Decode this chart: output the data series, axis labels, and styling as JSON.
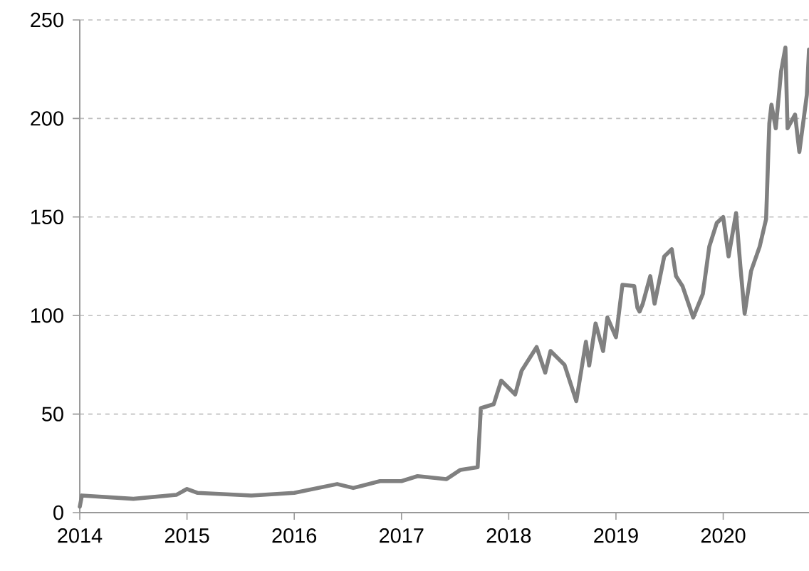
{
  "chart_data": {
    "type": "line",
    "x": [
      2014.0,
      2014.02,
      2014.5,
      2014.9,
      2015.0,
      2015.1,
      2015.6,
      2016.0,
      2016.4,
      2016.55,
      2016.8,
      2017.0,
      2017.15,
      2017.42,
      2017.55,
      2017.71,
      2017.74,
      2017.86,
      2017.93,
      2018.06,
      2018.12,
      2018.26,
      2018.34,
      2018.39,
      2018.52,
      2018.63,
      2018.72,
      2018.75,
      2018.81,
      2018.88,
      2018.92,
      2019.0,
      2019.06,
      2019.17,
      2019.2,
      2019.22,
      2019.25,
      2019.32,
      2019.36,
      2019.45,
      2019.52,
      2019.56,
      2019.62,
      2019.72,
      2019.81,
      2019.87,
      2019.94,
      2020.0,
      2020.05,
      2020.12,
      2020.16,
      2020.2,
      2020.26,
      2020.34,
      2020.4,
      2020.43,
      2020.45,
      2020.49,
      2020.54,
      2020.58,
      2020.6,
      2020.67,
      2020.71,
      2020.78,
      2020.8
    ],
    "series": [
      {
        "color": "#808080",
        "values": [
          3,
          8.7,
          7,
          9,
          12,
          10,
          8.7,
          10,
          14.5,
          12.5,
          16,
          16,
          18.5,
          17,
          21.7,
          23,
          53,
          55,
          67,
          60,
          72,
          84,
          71,
          82,
          75,
          56.6,
          86.7,
          74.6,
          96,
          82,
          99,
          89,
          115.6,
          115,
          104,
          102,
          106,
          120,
          106,
          130,
          133.7,
          120,
          115,
          99,
          111,
          135,
          147,
          150,
          130,
          152,
          125,
          101,
          122.6,
          135,
          149,
          197.5,
          207,
          195,
          224,
          236,
          195,
          202,
          183,
          212,
          235
        ]
      }
    ],
    "xlim": [
      2014,
      2020.8
    ],
    "ylim": [
      0,
      250
    ],
    "xticks": [
      2014,
      2015,
      2016,
      2017,
      2018,
      2019,
      2020
    ],
    "yticks": [
      0,
      50,
      100,
      150,
      200,
      250
    ],
    "grid": "y",
    "line_style": "solid",
    "marker": "none"
  }
}
